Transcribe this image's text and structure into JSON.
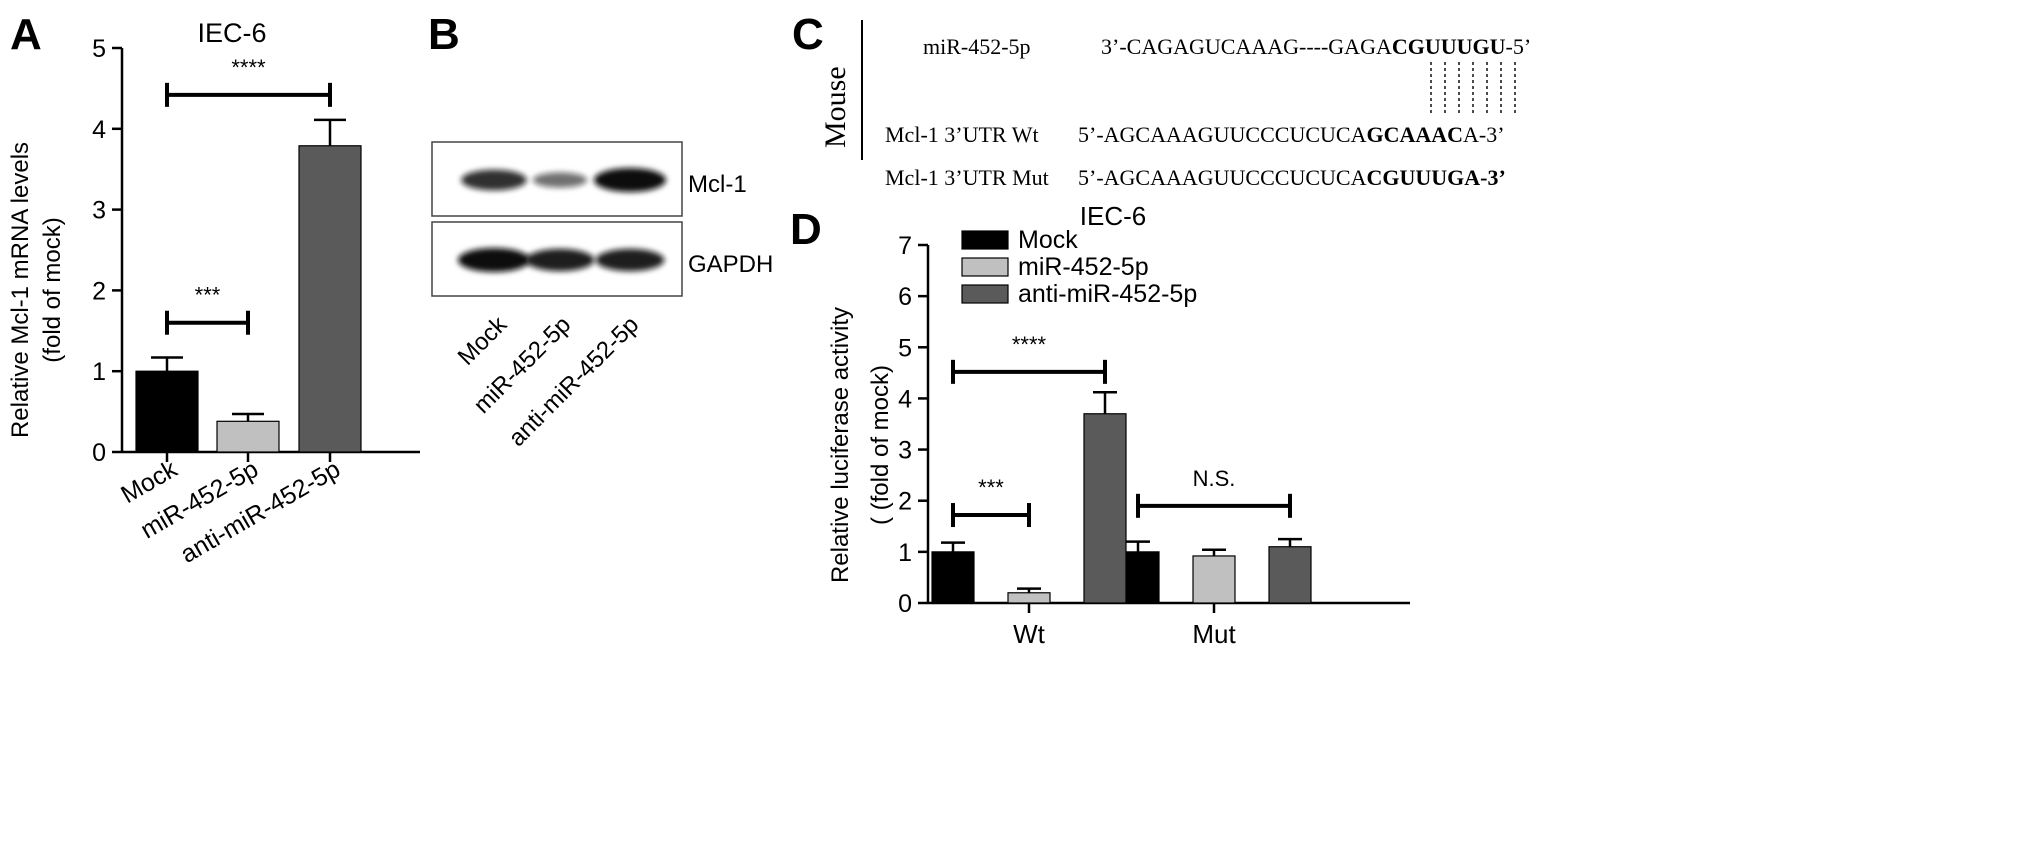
{
  "panels": {
    "a": {
      "letter": "A"
    },
    "b": {
      "letter": "B"
    },
    "c": {
      "letter": "C"
    },
    "d": {
      "letter": "D"
    }
  },
  "chart_data": [
    {
      "panel": "A",
      "type": "bar",
      "title": "IEC-6",
      "ylabel": [
        "Relative Mcl-1 mRNA levels",
        "(fold of mock)"
      ],
      "xlabel": "",
      "ylim": [
        0,
        5
      ],
      "yticks": [
        "0",
        "1",
        "2",
        "3",
        "4",
        "5"
      ],
      "categories": [
        "Mock",
        "miR-452-5p",
        "anti-miR-452-5p"
      ],
      "values": [
        1.0,
        0.38,
        3.79
      ],
      "errors": [
        0.17,
        0.09,
        0.32
      ],
      "colors": [
        "#000000",
        "#c0c0c0",
        "#5a5a5a"
      ],
      "annotations": [
        {
          "label": "***",
          "from": 0,
          "to": 1,
          "y": 1.6
        },
        {
          "label": "****",
          "from": 0,
          "to": 2,
          "y": 4.42
        }
      ]
    },
    {
      "panel": "D",
      "type": "bar",
      "title": "IEC-6",
      "ylabel": [
        "Relative luciferase activity",
        "( (fold of mock)"
      ],
      "xlabel": "",
      "ylim": [
        0,
        7
      ],
      "yticks": [
        "0",
        "1",
        "2",
        "3",
        "4",
        "5",
        "6",
        "7"
      ],
      "groups": [
        "Wt",
        "Mut"
      ],
      "series": [
        {
          "name": "Mock",
          "color": "#000000",
          "values": [
            1.0,
            1.0
          ],
          "errors": [
            0.18,
            0.2
          ]
        },
        {
          "name": "miR-452-5p",
          "color": "#c0c0c0",
          "values": [
            0.2,
            0.92
          ],
          "errors": [
            0.08,
            0.12
          ]
        },
        {
          "name": "anti-miR-452-5p",
          "color": "#5a5a5a",
          "values": [
            3.7,
            1.1
          ],
          "errors": [
            0.42,
            0.15
          ]
        }
      ],
      "legend": "top-left",
      "annotations": [
        {
          "label": "***",
          "group": 0,
          "from": 0,
          "to": 1,
          "y": 1.72
        },
        {
          "label": "****",
          "group": 0,
          "from": 0,
          "to": 2,
          "y": 4.52
        },
        {
          "label": "N.S.",
          "group": 1,
          "from": 0,
          "to": 2,
          "y": 1.9
        }
      ]
    }
  ],
  "western_blot": {
    "bands": [
      "Mcl-1",
      "GAPDH"
    ],
    "lanes": [
      "Mock",
      "miR-452-5p",
      "anti-miR-452-5p"
    ],
    "intensity": {
      "Mcl-1": [
        0.8,
        0.45,
        1.0
      ],
      "GAPDH": [
        1.0,
        0.9,
        0.9
      ]
    }
  },
  "alignment": {
    "species": "Mouse",
    "rows": [
      {
        "label": "miR-452-5p",
        "pre": "3’-CAGAGUCAAAG----GAGA",
        "bold": "CGUUUGU",
        "post": "-5’"
      },
      {
        "label": "Mcl-1  3’UTR Wt",
        "pre": "5’-AGCAAAGUUCCCUCUCA",
        "bold": "GCAAAC",
        "post": "A-3’"
      },
      {
        "label": "Mcl-1  3’UTR Mut",
        "pre": "5’-AGCAAAGUUCCCUCUCA",
        "bold": "CGUUUGA-3’",
        "post": ""
      }
    ],
    "pairing_lines": 7
  }
}
